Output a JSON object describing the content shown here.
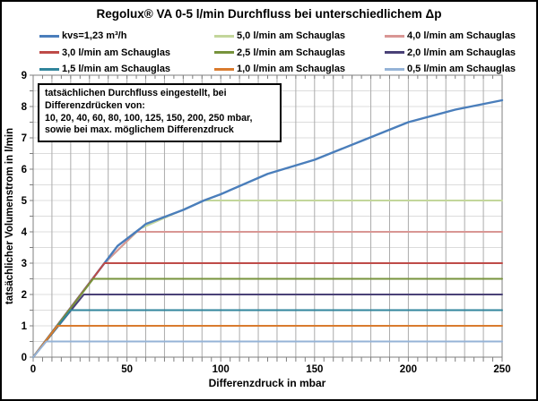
{
  "chart_data": {
    "type": "line",
    "title": "Regolux® VA 0-5 l/min Durchfluss bei unterschiedlichem Δp",
    "xlabel": "Differenzdruck in mbar",
    "ylabel": "tatsächlicher Volumenstrom in l/min",
    "xlim": [
      0,
      250
    ],
    "ylim": [
      0,
      9
    ],
    "x_ticks": [
      0,
      50,
      100,
      150,
      200,
      250
    ],
    "y_ticks": [
      0,
      1,
      2,
      3,
      4,
      5,
      6,
      7,
      8,
      9
    ],
    "x_minor_tick_step": 5,
    "y_minor_tick_step": 0.5,
    "x_grid_step": 10,
    "y_grid_step": 0.5,
    "grid": true,
    "legend_position": "top",
    "colors": {
      "x_gridline": "#ababab",
      "y_gridline": "#dcdcdc",
      "plot_border": "#7f7f7f",
      "tick": "#7f7f7f"
    },
    "series": [
      {
        "name": "kvs=1,23 m³/h",
        "color": "#4a7ebb",
        "width": 2.4,
        "points": [
          [
            0,
            0
          ],
          [
            10,
            0.79
          ],
          [
            20,
            1.58
          ],
          [
            30,
            2.37
          ],
          [
            38,
            3.0
          ],
          [
            45,
            3.55
          ],
          [
            57,
            4.1
          ],
          [
            60,
            4.25
          ],
          [
            80,
            4.7
          ],
          [
            91,
            5.0
          ],
          [
            100,
            5.2
          ],
          [
            125,
            5.85
          ],
          [
            150,
            6.3
          ],
          [
            175,
            6.9
          ],
          [
            200,
            7.5
          ],
          [
            225,
            7.9
          ],
          [
            250,
            8.2
          ]
        ]
      },
      {
        "name": "5,0 l/min am Schauglas",
        "color": "#c3d69b",
        "width": 2,
        "points": [
          [
            0,
            0
          ],
          [
            38,
            3.0
          ],
          [
            57,
            4.1
          ],
          [
            91,
            5.0
          ],
          [
            250,
            5.0
          ]
        ]
      },
      {
        "name": "4,0 l/min am Schauglas",
        "color": "#d99694",
        "width": 2,
        "points": [
          [
            0,
            0
          ],
          [
            38,
            3.0
          ],
          [
            55,
            4.0
          ],
          [
            250,
            4.0
          ]
        ]
      },
      {
        "name": "3,0 l/min am Schauglas",
        "color": "#be4b48",
        "width": 2,
        "points": [
          [
            0,
            0
          ],
          [
            38,
            3.0
          ],
          [
            250,
            3.0
          ]
        ]
      },
      {
        "name": "2,5 l/min am Schauglas",
        "color": "#77933c",
        "width": 2,
        "points": [
          [
            0,
            0
          ],
          [
            32,
            2.5
          ],
          [
            250,
            2.5
          ]
        ]
      },
      {
        "name": "2,0 l/min am Schauglas",
        "color": "#4a4177",
        "width": 2,
        "points": [
          [
            0,
            0
          ],
          [
            27,
            2.0
          ],
          [
            250,
            2.0
          ]
        ]
      },
      {
        "name": "1,5 l/min am Schauglas",
        "color": "#31859c",
        "width": 2,
        "points": [
          [
            0,
            0
          ],
          [
            20,
            1.5
          ],
          [
            250,
            1.5
          ]
        ]
      },
      {
        "name": "1,0 l/min am Schauglas",
        "color": "#d97b2e",
        "width": 2,
        "points": [
          [
            0,
            0
          ],
          [
            13,
            1.0
          ],
          [
            250,
            1.0
          ]
        ]
      },
      {
        "name": "0,5 l/min am Schauglas",
        "color": "#95b3d7",
        "width": 2,
        "points": [
          [
            0,
            0
          ],
          [
            7,
            0.5
          ],
          [
            250,
            0.5
          ]
        ]
      }
    ],
    "draw_order": [
      1,
      2,
      0,
      3,
      4,
      5,
      6,
      7,
      8
    ]
  },
  "annotation": {
    "lines": [
      "tatsächlichen Durchfluss eingestellt, bei",
      "Differenzdrücken von:",
      "10, 20, 40, 60, 80, 100, 125, 150, 200, 250 mbar,",
      "sowie bei max. möglichem Differenzdruck"
    ]
  }
}
